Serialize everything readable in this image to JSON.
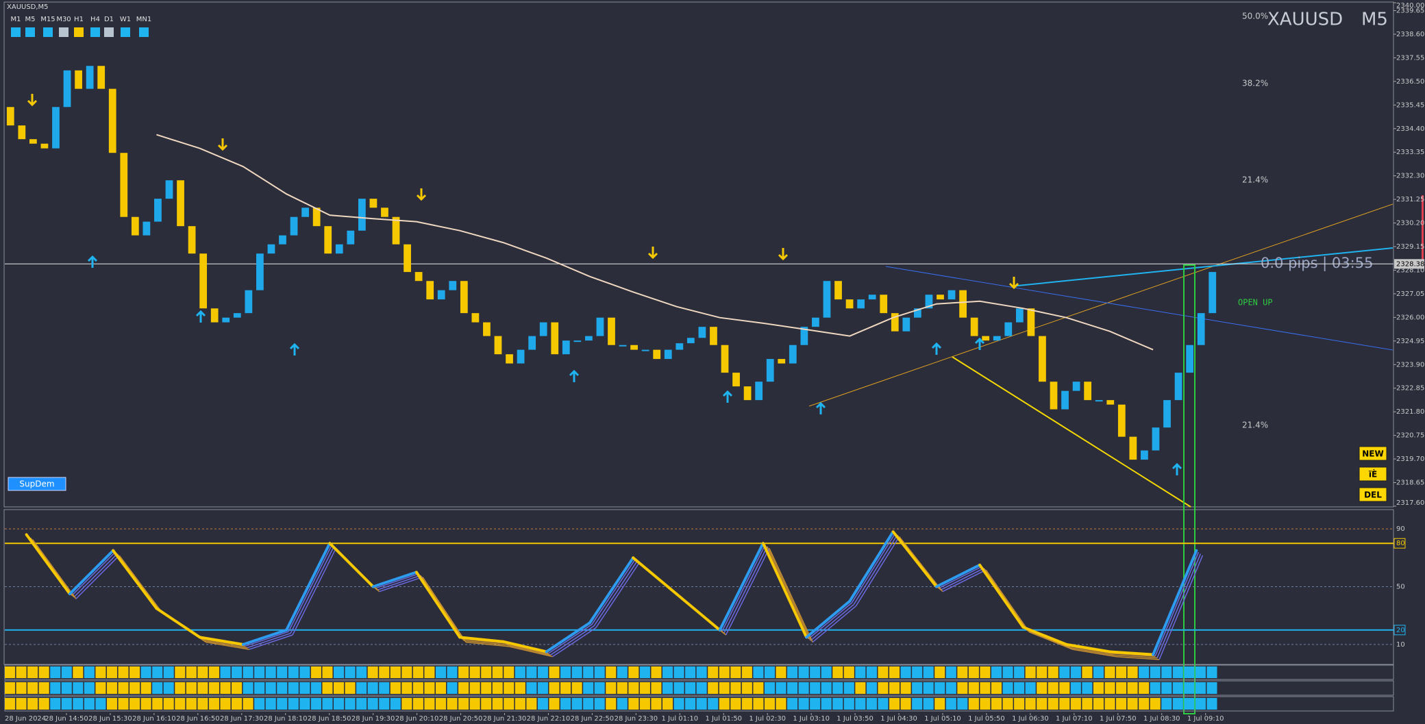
{
  "window_title": "XAUUSD,M5",
  "timeframes": [
    {
      "label": "M1",
      "color": "#1fb4f0"
    },
    {
      "label": "M5",
      "color": "#1fb4f0"
    },
    {
      "label": "M15",
      "color": "#1fb4f0"
    },
    {
      "label": "M30",
      "color": "#b8c4d0"
    },
    {
      "label": "H1",
      "color": "#f5c800"
    },
    {
      "label": "H4",
      "color": "#1fb4f0"
    },
    {
      "label": "D1",
      "color": "#b8c4d0"
    },
    {
      "label": "W1",
      "color": "#1fb4f0"
    },
    {
      "label": "MN1",
      "color": "#1fb4f0"
    }
  ],
  "symbol": "XAUUSD",
  "period": "M5",
  "fib_labels": [
    "50.0%",
    "38.2%",
    "21.4%",
    "21.4%"
  ],
  "pips_timer": "0.0 pips | 03:55",
  "signal": "OPEN UP",
  "buttons": [
    "NEW",
    "ïÈ",
    "DEL"
  ],
  "supdem_button": "SupDem",
  "chart_data": {
    "type": "candlestick",
    "up_color": "#1fa8ea",
    "down_color": "#f5c800",
    "ylim": [
      2317.6,
      2340.0
    ],
    "yticks": [
      {
        "value": 2317.6,
        "label": "2317.60"
      },
      {
        "value": 2318.65,
        "label": "2318.65"
      },
      {
        "value": 2319.7,
        "label": "2319.70"
      },
      {
        "value": 2320.75,
        "label": "2320.75"
      },
      {
        "value": 2321.8,
        "label": "2321.80"
      },
      {
        "value": 2322.85,
        "label": "2322.85"
      },
      {
        "value": 2323.9,
        "label": "2323.90"
      },
      {
        "value": 2324.95,
        "label": "2324.95"
      },
      {
        "value": 2326.0,
        "label": "2326.00"
      },
      {
        "value": 2327.05,
        "label": "2327.05"
      },
      {
        "value": 2328.1,
        "label": "2328.10"
      },
      {
        "value": 2329.15,
        "label": "2329.15"
      },
      {
        "value": 2330.2,
        "label": "2330.20"
      },
      {
        "value": 2331.25,
        "label": "2331.25"
      },
      {
        "value": 2332.3,
        "label": "2332.30"
      },
      {
        "value": 2333.35,
        "label": "2333.35"
      },
      {
        "value": 2334.4,
        "label": "2334.40"
      },
      {
        "value": 2335.45,
        "label": "2335.45"
      },
      {
        "value": 2336.5,
        "label": "2336.50"
      },
      {
        "value": 2337.55,
        "label": "2337.55"
      },
      {
        "value": 2338.6,
        "label": "2338.60"
      },
      {
        "value": 2339.65,
        "label": "2339.65"
      },
      {
        "value": 2340.0,
        "label": "2340.00"
      }
    ],
    "current_price": {
      "value": 2328.38,
      "label": "2328.38"
    },
    "time_labels": [
      "28 Jun 2024",
      "28 Jun 14:50",
      "28 Jun 15:30",
      "28 Jun 16:10",
      "28 Jun 16:50",
      "28 Jun 17:30",
      "28 Jun 18:10",
      "28 Jun 18:50",
      "28 Jun 19:30",
      "28 Jun 20:10",
      "28 Jun 20:50",
      "28 Jun 21:30",
      "28 Jun 22:10",
      "28 Jun 22:50",
      "28 Jun 23:30",
      "1 Jul 01:10",
      "1 Jul 01:50",
      "1 Jul 02:30",
      "1 Jul 03:10",
      "1 Jul 03:50",
      "1 Jul 04:30",
      "1 Jul 05:10",
      "1 Jul 05:50",
      "1 Jul 06:30",
      "1 Jul 07:10",
      "1 Jul 07:50",
      "1 Jul 08:30",
      "1 Jul 09:10"
    ],
    "values": [
      2335.36,
      2334.54,
      2333.93,
      2333.73,
      2333.52,
      2335.36,
      2336.99,
      2336.17,
      2337.19,
      2336.17,
      2333.32,
      2330.47,
      2329.65,
      2330.26,
      2331.28,
      2332.1,
      2330.06,
      2328.84,
      2326.4,
      2325.78,
      2325.99,
      2326.19,
      2327.21,
      2328.84,
      2329.25,
      2329.65,
      2330.47,
      2330.88,
      2330.06,
      2328.84,
      2329.25,
      2329.86,
      2331.28,
      2330.88,
      2330.47,
      2329.25,
      2328.02,
      2327.62,
      2326.8,
      2327.21,
      2327.62,
      2326.19,
      2325.78,
      2325.17,
      2324.36,
      2323.95,
      2324.56,
      2325.17,
      2325.78,
      2324.36,
      2324.97,
      2324.97,
      2325.17,
      2325.99,
      2324.77,
      2324.77,
      2324.56,
      2324.56,
      2324.15,
      2324.56,
      2324.85,
      2325.09,
      2325.58,
      2324.77,
      2323.54,
      2322.93,
      2322.32,
      2323.14,
      2324.15,
      2323.95,
      2324.77,
      2325.58,
      2325.99,
      2327.62,
      2326.8,
      2326.4,
      2326.8,
      2327.01,
      2326.19,
      2325.38,
      2325.99,
      2326.4,
      2327.01,
      2326.8,
      2327.21,
      2325.99,
      2325.17,
      2324.97,
      2325.17,
      2325.78,
      2326.4,
      2325.17,
      2323.14,
      2321.91,
      2322.73,
      2323.14,
      2322.32,
      2322.32,
      2322.12,
      2320.69,
      2319.67,
      2320.08,
      2321.1,
      2322.32,
      2323.54,
      2324.77,
      2326.19,
      2328.02
    ],
    "ma": {
      "color": "#f0d8c0",
      "values": [
        null,
        null,
        null,
        2334.13,
        2333.52,
        2332.71,
        2331.49,
        2330.55,
        2330.39,
        2330.26,
        2329.86,
        2329.33,
        2328.64,
        2327.82,
        2327.13,
        2326.48,
        2325.99,
        2325.74,
        2325.46,
        2325.17,
        2325.99,
        2326.6,
        2326.72,
        2326.4,
        2325.99,
        2325.38,
        2324.56,
        null
      ]
    },
    "oscillator": {
      "ylim": [
        0,
        100
      ],
      "yticks": [
        10,
        50,
        90
      ],
      "rise_color": "#2d9cf0",
      "fall_color": "#f5c800",
      "levels": [
        {
          "value": 80,
          "color": "#f5c800"
        },
        {
          "value": 20,
          "color": "#1fb4f0"
        }
      ],
      "values": [
        86,
        45,
        75,
        35,
        15,
        10,
        20,
        80,
        50,
        60,
        15,
        12,
        5,
        25,
        70,
        45,
        20,
        80,
        15,
        40,
        88,
        50,
        65,
        22,
        10,
        5,
        3,
        75
      ]
    }
  }
}
